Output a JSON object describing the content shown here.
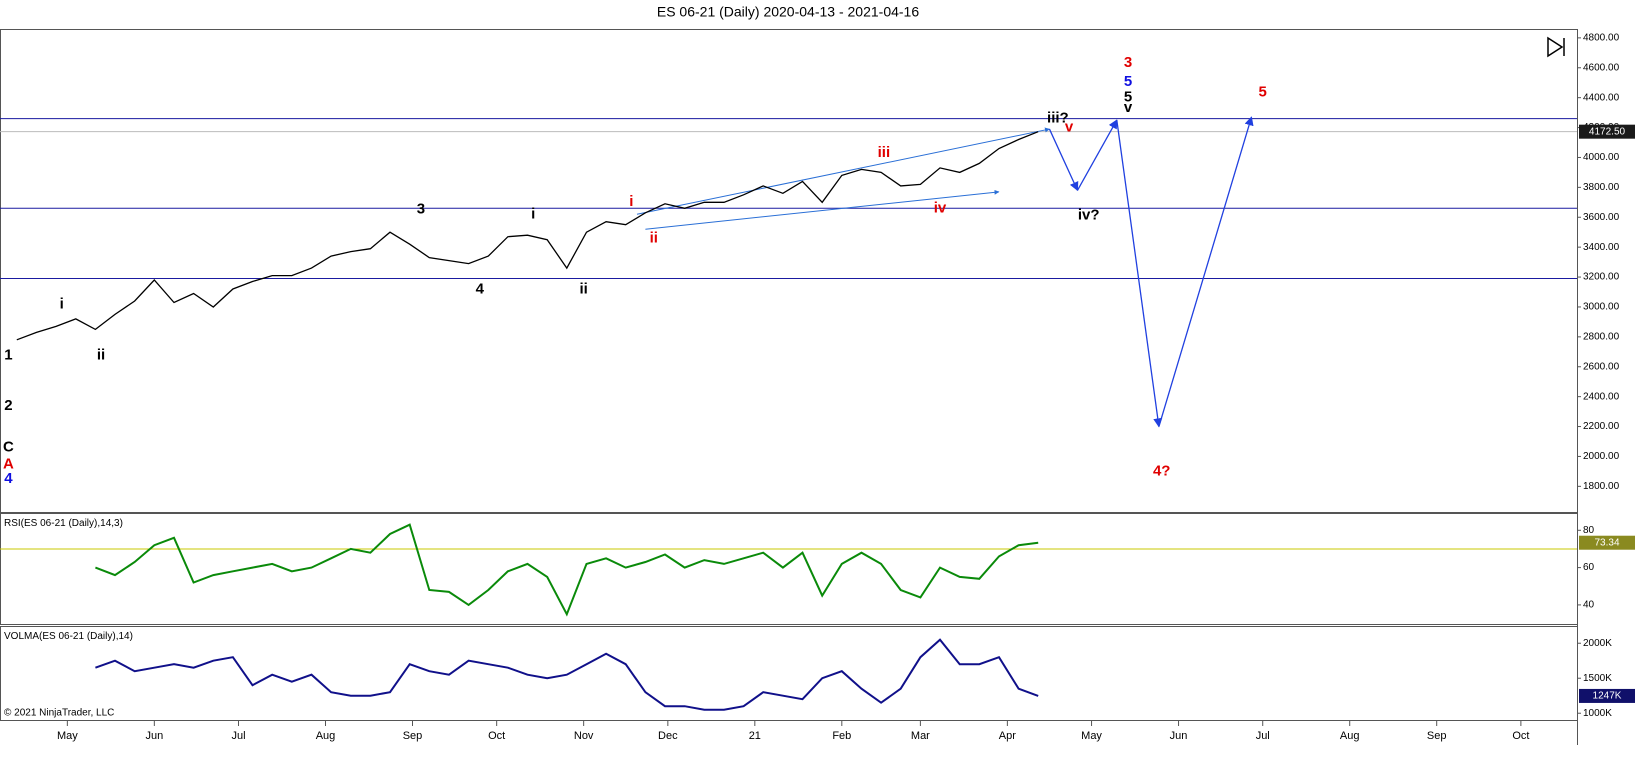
{
  "chart_data": {
    "type": "line",
    "title": "ES 06-21 (Daily)  2020-04-13 - 2021-04-16",
    "copyright": "© 2021 NinjaTrader, LLC",
    "xlim": [
      "2020-04-07",
      "2021-10-21"
    ],
    "xticks": [
      {
        "value": "2020-05-01",
        "label": "May"
      },
      {
        "value": "2020-06-01",
        "label": "Jun"
      },
      {
        "value": "2020-07-01",
        "label": "Jul"
      },
      {
        "value": "2020-08-01",
        "label": "Aug"
      },
      {
        "value": "2020-09-01",
        "label": "Sep"
      },
      {
        "value": "2020-10-01",
        "label": "Oct"
      },
      {
        "value": "2020-11-01",
        "label": "Nov"
      },
      {
        "value": "2020-12-01",
        "label": "Dec"
      },
      {
        "value": "2021-01-01",
        "label": "21"
      },
      {
        "value": "2021-02-01",
        "label": "Feb"
      },
      {
        "value": "2021-03-01",
        "label": "Mar"
      },
      {
        "value": "2021-04-01",
        "label": "Apr"
      },
      {
        "value": "2021-05-01",
        "label": "May"
      },
      {
        "value": "2021-06-01",
        "label": "Jun"
      },
      {
        "value": "2021-07-01",
        "label": "Jul"
      },
      {
        "value": "2021-08-01",
        "label": "Aug"
      },
      {
        "value": "2021-09-01",
        "label": "Sep"
      },
      {
        "value": "2021-10-01",
        "label": "Oct"
      }
    ],
    "panels": [
      {
        "ylim": [
          1625,
          4856
        ],
        "yticks": [
          {
            "value": 1800,
            "label": "1800.00"
          },
          {
            "value": 2000,
            "label": "2000.00"
          },
          {
            "value": 2200,
            "label": "2200.00"
          },
          {
            "value": 2400,
            "label": "2400.00"
          },
          {
            "value": 2600,
            "label": "2600.00"
          },
          {
            "value": 2800,
            "label": "2800.00"
          },
          {
            "value": 3000,
            "label": "3000.00"
          },
          {
            "value": 3200,
            "label": "3200.00"
          },
          {
            "value": 3400,
            "label": "3400.00"
          },
          {
            "value": 3600,
            "label": "3600.00"
          },
          {
            "value": 3800,
            "label": "3800.00"
          },
          {
            "value": 4000,
            "label": "4000.00"
          },
          {
            "value": 4200,
            "label": "4200.00"
          },
          {
            "value": 4400,
            "label": "4400.00"
          },
          {
            "value": 4600,
            "label": "4600.00"
          },
          {
            "value": 4800,
            "label": "4800.00"
          }
        ],
        "last": {
          "value": 4172.5,
          "label": "4172.50",
          "color": "#1a1a1a"
        },
        "hlines": [
          4260,
          3660,
          3190
        ],
        "hline_color": "#1a1aa0",
        "series": [
          {
            "color": "#000000",
            "x": [
              "2020-04-13",
              "2020-04-20",
              "2020-04-27",
              "2020-05-04",
              "2020-05-11",
              "2020-05-18",
              "2020-05-25",
              "2020-06-01",
              "2020-06-08",
              "2020-06-15",
              "2020-06-22",
              "2020-06-29",
              "2020-07-06",
              "2020-07-13",
              "2020-07-20",
              "2020-07-27",
              "2020-08-03",
              "2020-08-10",
              "2020-08-17",
              "2020-08-24",
              "2020-08-31",
              "2020-09-07",
              "2020-09-14",
              "2020-09-21",
              "2020-09-28",
              "2020-10-05",
              "2020-10-12",
              "2020-10-19",
              "2020-10-26",
              "2020-11-02",
              "2020-11-09",
              "2020-11-16",
              "2020-11-23",
              "2020-11-30",
              "2020-12-07",
              "2020-12-14",
              "2020-12-21",
              "2020-12-28",
              "2021-01-04",
              "2021-01-11",
              "2021-01-18",
              "2021-01-25",
              "2021-02-01",
              "2021-02-08",
              "2021-02-15",
              "2021-02-22",
              "2021-03-01",
              "2021-03-08",
              "2021-03-15",
              "2021-03-22",
              "2021-03-29",
              "2021-04-05",
              "2021-04-12"
            ],
            "values": [
              2780,
              2830,
              2870,
              2920,
              2850,
              2950,
              3040,
              3180,
              3030,
              3090,
              3000,
              3120,
              3170,
              3210,
              3210,
              3260,
              3340,
              3370,
              3390,
              3500,
              3420,
              3330,
              3310,
              3290,
              3340,
              3470,
              3480,
              3450,
              3260,
              3500,
              3570,
              3550,
              3630,
              3690,
              3660,
              3700,
              3700,
              3750,
              3810,
              3760,
              3840,
              3700,
              3880,
              3920,
              3900,
              3810,
              3820,
              3930,
              3900,
              3960,
              4060,
              4120,
              4172.5
            ]
          }
        ],
        "trendlines": [
          {
            "color": "#2a6fd6",
            "x": [
              "2020-11-20",
              "2021-04-16"
            ],
            "values": [
              3620,
              4190
            ]
          },
          {
            "color": "#2a6fd6",
            "x": [
              "2020-11-23",
              "2021-03-29"
            ],
            "values": [
              3520,
              3770
            ]
          }
        ],
        "projection": {
          "color": "#2040e0",
          "x": [
            "2021-04-16",
            "2021-04-26",
            "2021-05-10",
            "2021-05-25",
            "2021-06-27"
          ],
          "values": [
            4190,
            3780,
            4250,
            2200,
            4270
          ]
        },
        "annotations": [
          {
            "text": "1",
            "x": "2020-04-10",
            "y": 2674,
            "color": "#000000"
          },
          {
            "text": "2",
            "x": "2020-04-10",
            "y": 2338,
            "color": "#000000"
          },
          {
            "text": "C",
            "x": "2020-04-10",
            "y": 2059,
            "color": "#000000"
          },
          {
            "text": "A",
            "x": "2020-04-10",
            "y": 1947,
            "color": "#e00000"
          },
          {
            "text": "4",
            "x": "2020-04-10",
            "y": 1849,
            "color": "#1010e0"
          },
          {
            "text": "i",
            "x": "2020-04-29",
            "y": 3017,
            "color": "#000000"
          },
          {
            "text": "ii",
            "x": "2020-05-13",
            "y": 2674,
            "color": "#000000"
          },
          {
            "text": "3",
            "x": "2020-09-04",
            "y": 3653,
            "color": "#000000"
          },
          {
            "text": "4",
            "x": "2020-09-25",
            "y": 3115,
            "color": "#000000"
          },
          {
            "text": "i",
            "x": "2020-10-14",
            "y": 3618,
            "color": "#000000"
          },
          {
            "text": "ii",
            "x": "2020-11-01",
            "y": 3115,
            "color": "#000000"
          },
          {
            "text": "i",
            "x": "2020-11-18",
            "y": 3702,
            "color": "#e00000"
          },
          {
            "text": "ii",
            "x": "2020-11-26",
            "y": 3457,
            "color": "#e00000"
          },
          {
            "text": "iii",
            "x": "2021-02-16",
            "y": 4031,
            "color": "#e00000"
          },
          {
            "text": "iv",
            "x": "2021-03-08",
            "y": 3660,
            "color": "#e00000"
          },
          {
            "text": "iii?",
            "x": "2021-04-19",
            "y": 4261,
            "color": "#000000"
          },
          {
            "text": "v",
            "x": "2021-04-23",
            "y": 4199,
            "color": "#e00000"
          },
          {
            "text": "iv?",
            "x": "2021-04-30",
            "y": 3611,
            "color": "#000000"
          },
          {
            "text": "3",
            "x": "2021-05-14",
            "y": 4632,
            "color": "#e00000"
          },
          {
            "text": "5",
            "x": "2021-05-14",
            "y": 4506,
            "color": "#1010e0"
          },
          {
            "text": "5",
            "x": "2021-05-14",
            "y": 4401,
            "color": "#000000"
          },
          {
            "text": "v",
            "x": "2021-05-14",
            "y": 4331,
            "color": "#000000"
          },
          {
            "text": "5",
            "x": "2021-07-01",
            "y": 4436,
            "color": "#e00000"
          },
          {
            "text": "4?",
            "x": "2021-05-26",
            "y": 1898,
            "color": "#e00000"
          }
        ]
      },
      {
        "title": "RSI(ES 06-21 (Daily),14,3)",
        "ylim": [
          29.5,
          89
        ],
        "yticks": [
          40,
          60,
          80
        ],
        "level": 70,
        "level_color": "#c8c800",
        "last": {
          "value": 73.34,
          "label": "73.34",
          "color": "#8a8a20"
        },
        "series": [
          {
            "color": "#0a8a0a",
            "x": [
              "2020-05-11",
              "2020-05-18",
              "2020-05-25",
              "2020-06-01",
              "2020-06-08",
              "2020-06-15",
              "2020-06-22",
              "2020-06-29",
              "2020-07-06",
              "2020-07-13",
              "2020-07-20",
              "2020-07-27",
              "2020-08-03",
              "2020-08-10",
              "2020-08-17",
              "2020-08-24",
              "2020-08-31",
              "2020-09-07",
              "2020-09-14",
              "2020-09-21",
              "2020-09-28",
              "2020-10-05",
              "2020-10-12",
              "2020-10-19",
              "2020-10-26",
              "2020-11-02",
              "2020-11-09",
              "2020-11-16",
              "2020-11-23",
              "2020-11-30",
              "2020-12-07",
              "2020-12-14",
              "2020-12-21",
              "2020-12-28",
              "2021-01-04",
              "2021-01-11",
              "2021-01-18",
              "2021-01-25",
              "2021-02-01",
              "2021-02-08",
              "2021-02-15",
              "2021-02-22",
              "2021-03-01",
              "2021-03-08",
              "2021-03-15",
              "2021-03-22",
              "2021-03-29",
              "2021-04-05",
              "2021-04-12"
            ],
            "values": [
              60,
              56,
              63,
              72,
              76,
              52,
              56,
              58,
              60,
              62,
              58,
              60,
              65,
              70,
              68,
              78,
              83,
              48,
              47,
              40,
              48,
              58,
              62,
              55,
              35,
              62,
              65,
              60,
              63,
              67,
              60,
              64,
              62,
              65,
              68,
              60,
              68,
              45,
              62,
              68,
              62,
              48,
              44,
              60,
              55,
              54,
              66,
              72,
              73.34
            ]
          }
        ]
      },
      {
        "title": "VOLMA(ES 06-21 (Daily),14)",
        "ylim": [
          896000,
          2239000
        ],
        "yticks": [
          {
            "value": 1000000,
            "label": "1000K"
          },
          {
            "value": 1500000,
            "label": "1500K"
          },
          {
            "value": 2000000,
            "label": "2000K"
          }
        ],
        "last": {
          "value": 1247000,
          "label": "1247K",
          "color": "#10106a"
        },
        "series": [
          {
            "color": "#10108a",
            "x": [
              "2020-05-11",
              "2020-05-18",
              "2020-05-25",
              "2020-06-01",
              "2020-06-08",
              "2020-06-15",
              "2020-06-22",
              "2020-06-29",
              "2020-07-06",
              "2020-07-13",
              "2020-07-20",
              "2020-07-27",
              "2020-08-03",
              "2020-08-10",
              "2020-08-17",
              "2020-08-24",
              "2020-08-31",
              "2020-09-07",
              "2020-09-14",
              "2020-09-21",
              "2020-09-28",
              "2020-10-05",
              "2020-10-12",
              "2020-10-19",
              "2020-10-26",
              "2020-11-02",
              "2020-11-09",
              "2020-11-16",
              "2020-11-23",
              "2020-11-30",
              "2020-12-07",
              "2020-12-14",
              "2020-12-21",
              "2020-12-28",
              "2021-01-04",
              "2021-01-11",
              "2021-01-18",
              "2021-01-25",
              "2021-02-01",
              "2021-02-08",
              "2021-02-15",
              "2021-02-22",
              "2021-03-01",
              "2021-03-08",
              "2021-03-15",
              "2021-03-22",
              "2021-03-29",
              "2021-04-05",
              "2021-04-12"
            ],
            "values": [
              1650000,
              1750000,
              1600000,
              1650000,
              1700000,
              1650000,
              1750000,
              1800000,
              1400000,
              1550000,
              1450000,
              1550000,
              1300000,
              1250000,
              1250000,
              1300000,
              1700000,
              1600000,
              1550000,
              1750000,
              1700000,
              1650000,
              1550000,
              1500000,
              1550000,
              1700000,
              1850000,
              1700000,
              1300000,
              1100000,
              1100000,
              1050000,
              1050000,
              1100000,
              1300000,
              1250000,
              1200000,
              1500000,
              1600000,
              1350000,
              1150000,
              1350000,
              1800000,
              2050000,
              1700000,
              1700000,
              1800000,
              1350000,
              1247000
            ]
          }
        ]
      }
    ]
  }
}
